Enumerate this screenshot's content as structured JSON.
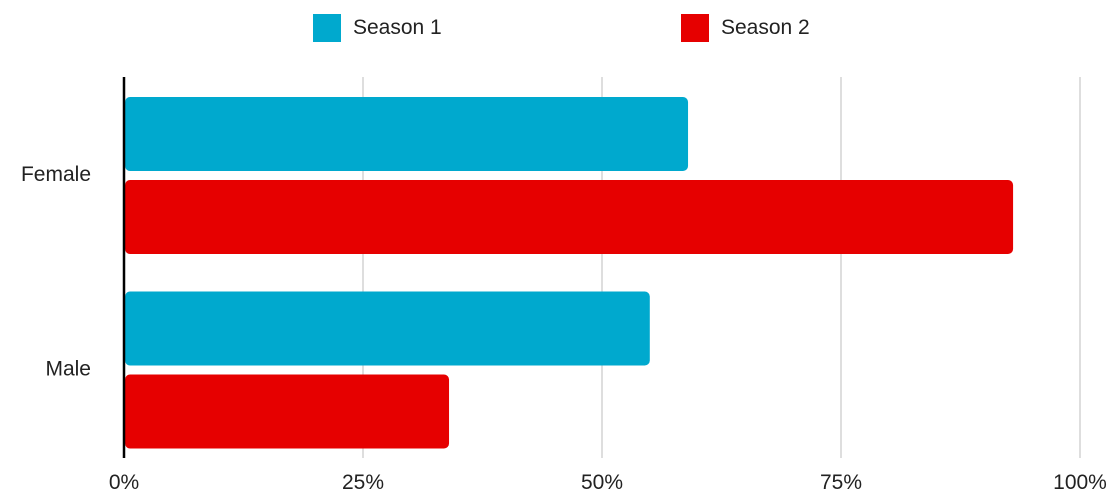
{
  "chart_data": {
    "type": "bar",
    "orientation": "horizontal",
    "categories": [
      "Female",
      "Male"
    ],
    "series": [
      {
        "name": "Season 1",
        "color": "#00A9CE",
        "values": [
          59,
          55
        ]
      },
      {
        "name": "Season 2",
        "color": "#E60000",
        "values": [
          93,
          34
        ]
      }
    ],
    "x_ticks": [
      0,
      25,
      50,
      75,
      100
    ],
    "x_tick_labels": [
      "0%",
      "25%",
      "50%",
      "75%",
      "100%"
    ],
    "xlim": [
      0,
      100
    ],
    "grid": true,
    "legend_position": "top-center"
  }
}
